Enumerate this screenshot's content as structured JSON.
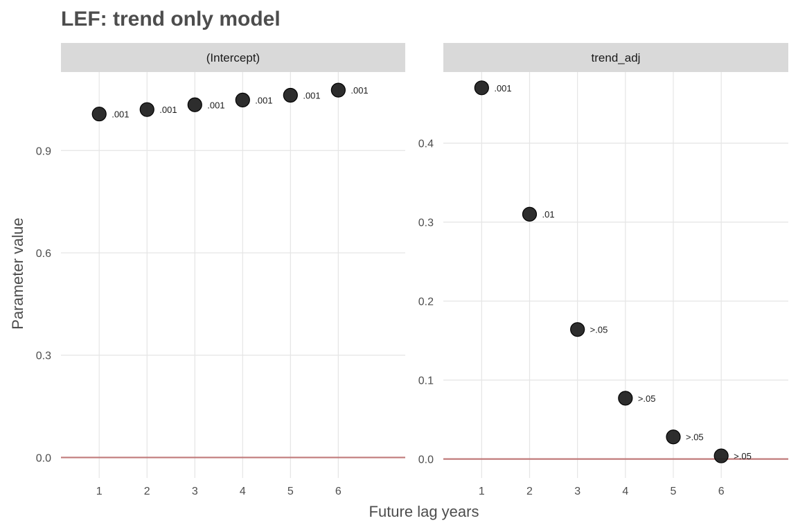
{
  "chart_data": {
    "type": "scatter",
    "title": "LEF: trend only model",
    "xlabel": "Future lag years",
    "ylabel": "Parameter value",
    "reference_line": {
      "y": 0,
      "color": "#c07a7a"
    },
    "point_color": "#222222",
    "panels": [
      {
        "strip_label": "(Intercept)",
        "x": [
          1,
          2,
          3,
          4,
          5,
          6
        ],
        "y": [
          1.007,
          1.02,
          1.034,
          1.048,
          1.062,
          1.077
        ],
        "point_labels": [
          ".001",
          ".001",
          ".001",
          ".001",
          ".001",
          ".001"
        ],
        "xlim": [
          0.2,
          7.4
        ],
        "ylim": [
          -0.06,
          1.13
        ],
        "xticks": [
          1,
          2,
          3,
          4,
          5,
          6
        ],
        "yticks": [
          0.0,
          0.3,
          0.6,
          0.9
        ],
        "ytick_labels": [
          "0.0",
          "0.3",
          "0.6",
          "0.9"
        ]
      },
      {
        "strip_label": "trend_adj",
        "x": [
          1,
          2,
          3,
          4,
          5,
          6
        ],
        "y": [
          0.47,
          0.31,
          0.164,
          0.077,
          0.028,
          0.004
        ],
        "point_labels": [
          ".001",
          ".01",
          ">.05",
          ">.05",
          ">.05",
          ">.05"
        ],
        "xlim": [
          0.2,
          7.4
        ],
        "ylim": [
          -0.024,
          0.49
        ],
        "xticks": [
          1,
          2,
          3,
          4,
          5,
          6
        ],
        "yticks": [
          0.0,
          0.1,
          0.2,
          0.3,
          0.4
        ],
        "ytick_labels": [
          "0.0",
          "0.1",
          "0.2",
          "0.3",
          "0.4"
        ]
      }
    ]
  }
}
